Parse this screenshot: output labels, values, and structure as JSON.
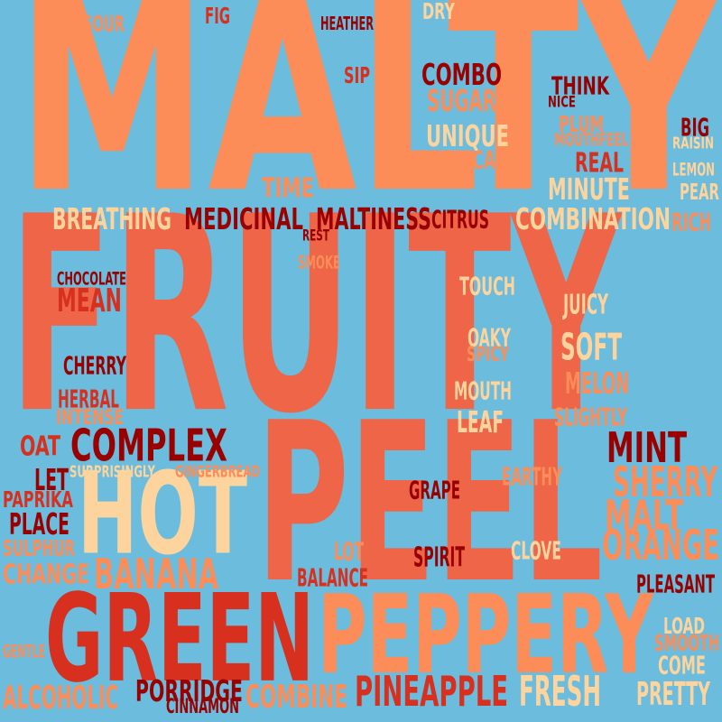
{
  "palette": {
    "background": "#6bbcdd",
    "light_orange": "#fc8d59",
    "coral": "#ef6548",
    "red": "#d7301f",
    "dark_red": "#990000",
    "cream": "#fdd49e"
  },
  "words": {
    "malty": "MALTY",
    "fruity": "FRUITY",
    "peel": "PEEL",
    "hot": "HOT",
    "green": "GREEN",
    "peppery": "PEPPERY",
    "sour": "SOUR",
    "fig": "FIG",
    "heather": "HEATHER",
    "dry": "DRY",
    "sip": "SIP",
    "combo": "COMBO",
    "sugary": "SUGARY",
    "think": "THINK",
    "nice": "NICE",
    "plum": "PLUM",
    "big": "BIG",
    "mouthfeel": "MOUTHFEEL",
    "raisin": "RAISIN",
    "unique": "UNIQUE",
    "tropical": "TROPICAL",
    "real": "REAL",
    "lemon": "LEMON",
    "time": "TIME",
    "minute": "MINUTE",
    "pear": "PEAR",
    "breathing": "BREATHING",
    "medicinal": "MEDICINAL",
    "maltiness": "MALTINESS",
    "citrus": "CITRUS",
    "combination": "COMBINATION",
    "rich": "RICH",
    "rest": "REST",
    "smoke": "SMOKE",
    "chocolate": "CHOCOLATE",
    "mean": "MEAN",
    "touch": "TOUCH",
    "juicy": "JUICY",
    "oaky": "OAKY",
    "soft": "SOFT",
    "spicy": "SPICY",
    "cherry": "CHERRY",
    "mouth": "MOUTH",
    "melon": "MELON",
    "herbal": "HERBAL",
    "intense": "INTENSE",
    "leaf": "LEAF",
    "slightly": "SLIGHTLY",
    "oat": "OAT",
    "complex": "COMPLEX",
    "mint": "MINT",
    "let": "LET",
    "surprisingly": "SURPRISINGLY",
    "gingerbread": "GINGERBREAD",
    "earthy": "EARTHY",
    "sherry": "SHERRY",
    "paprika": "PAPRIKA",
    "grape": "GRAPE",
    "malt": "MALT",
    "place": "PLACE",
    "orange": "ORANGE",
    "sulphur": "SULPHUR",
    "lot": "LOT",
    "clove": "CLOVE",
    "spirit": "SPIRIT",
    "change": "CHANGE",
    "banana": "BANANA",
    "balance": "BALANCE",
    "pleasant": "PLEASANT",
    "load": "LOAD",
    "gentle": "GENTLE",
    "smooth": "SMOOTH",
    "come": "COME",
    "alcoholic": "ALCOHOLIC",
    "porridge": "PORRIDGE",
    "combine": "COMBINE",
    "pineapple": "PINEAPPLE",
    "fresh": "FRESH",
    "pretty": "PRETTY",
    "cinnamon": "CINNAMON"
  }
}
